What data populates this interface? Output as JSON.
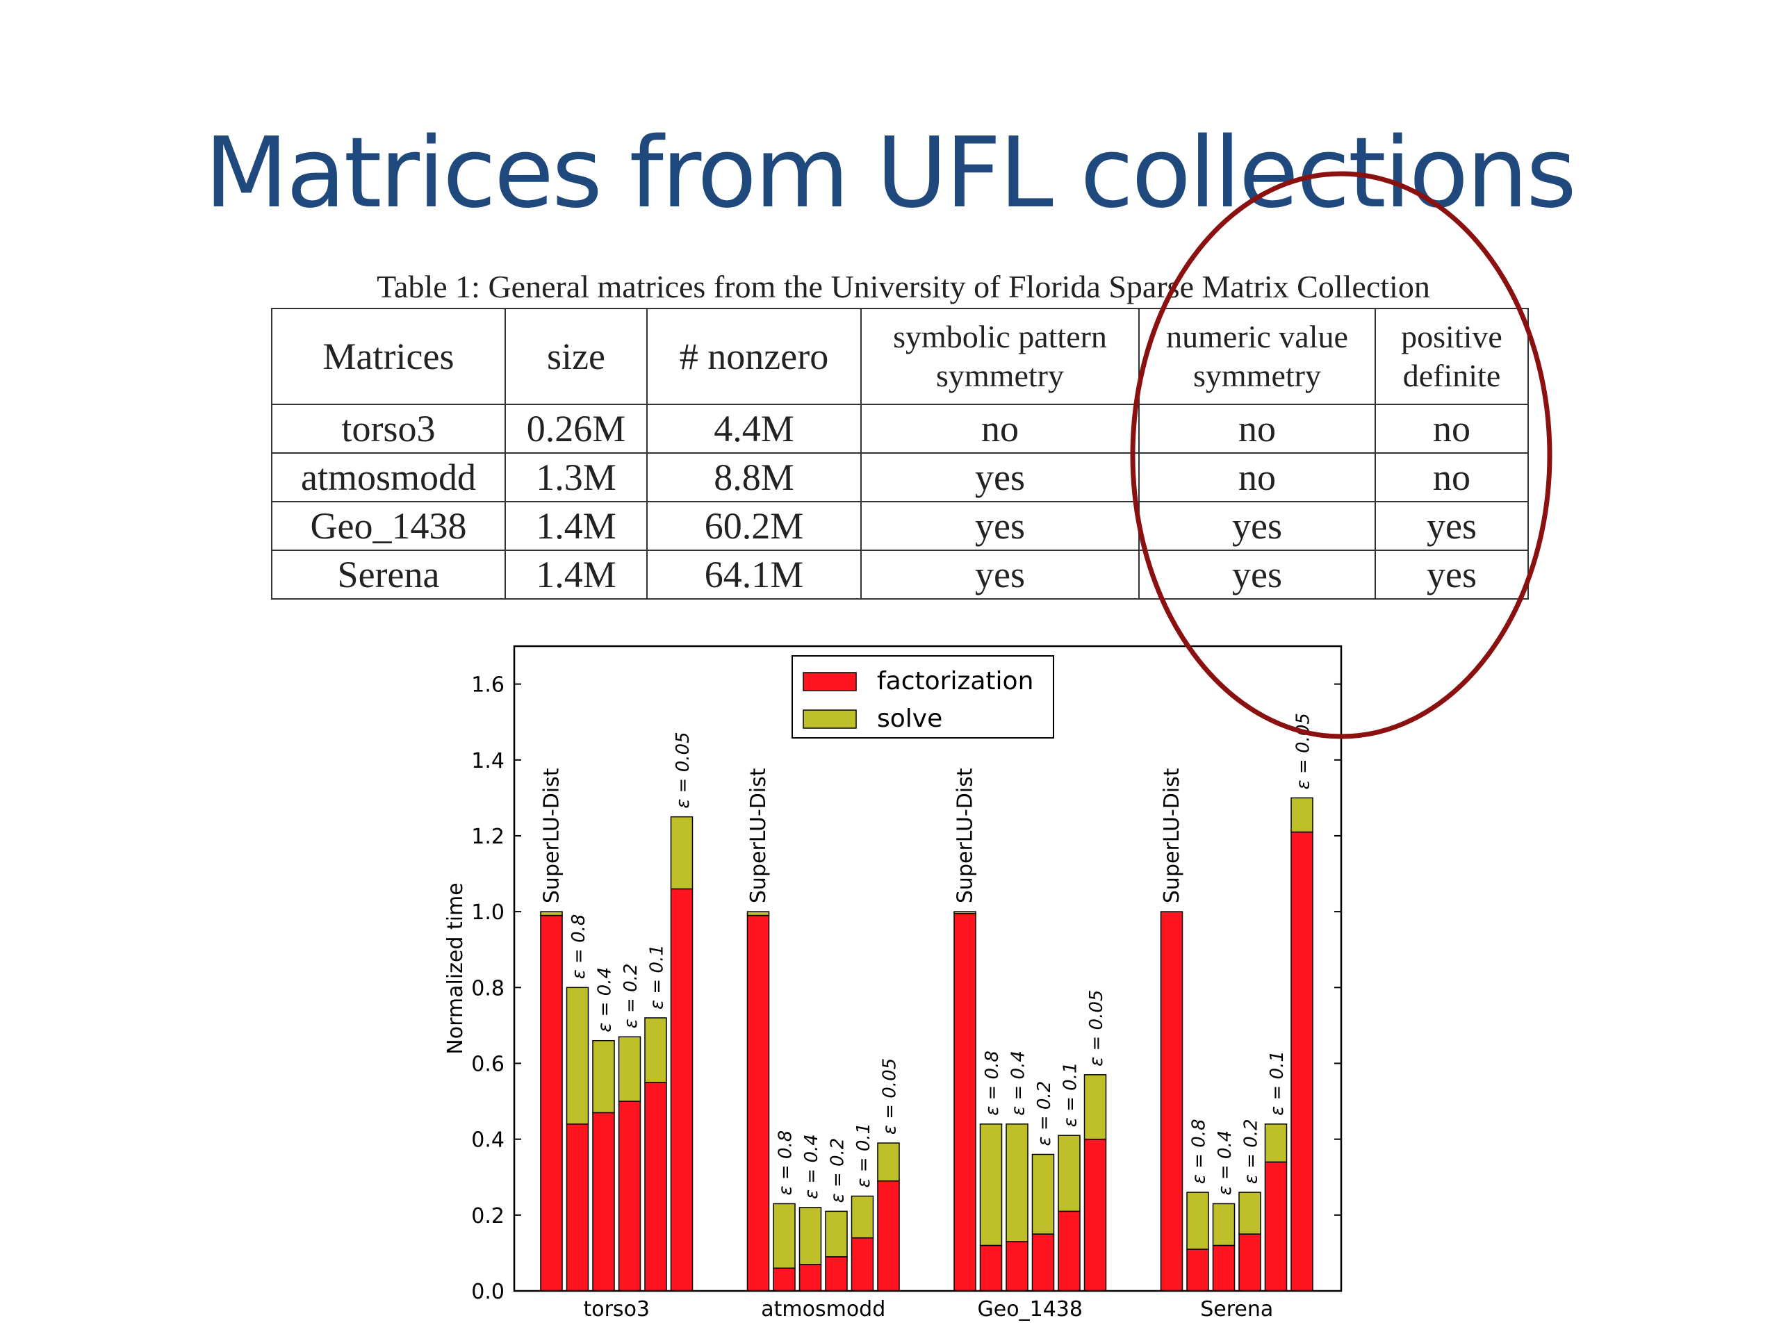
{
  "slide": {
    "title": "Matrices from UFL collections"
  },
  "table": {
    "caption": "Table 1: General matrices from the University of Florida Sparse Matrix Collection",
    "headers": [
      [
        "Matrices"
      ],
      [
        "size"
      ],
      [
        "# nonzero"
      ],
      [
        "symbolic pattern",
        "symmetry"
      ],
      [
        "numeric value",
        "symmetry"
      ],
      [
        "positive",
        "definite"
      ]
    ],
    "rows": [
      [
        "torso3",
        "0.26M",
        "4.4M",
        "no",
        "no",
        "no"
      ],
      [
        "atmosmodd",
        "1.3M",
        "8.8M",
        "yes",
        "no",
        "no"
      ],
      [
        "Geo_1438",
        "1.4M",
        "60.2M",
        "yes",
        "yes",
        "yes"
      ],
      [
        "Serena",
        "1.4M",
        "64.1M",
        "yes",
        "yes",
        "yes"
      ]
    ]
  },
  "annotation": {
    "ellipse_color": "#8b1010"
  },
  "chart_data": {
    "type": "bar",
    "stacked": true,
    "ylabel": "Normalized time",
    "ylim": [
      0,
      1.7
    ],
    "yticks": [
      "0.0",
      "0.2",
      "0.4",
      "0.6",
      "0.8",
      "1.0",
      "1.2",
      "1.4",
      "1.6"
    ],
    "legend": {
      "placement": "top-center",
      "entries": [
        "factorization",
        "solve"
      ]
    },
    "colors": {
      "factorization": "#ff1420",
      "solve": "#bfbf2a"
    },
    "groups": [
      {
        "category": "torso3",
        "bars": [
          {
            "label": "SuperLU-Dist",
            "factorization": 0.99,
            "solve": 0.01
          },
          {
            "label": "ε = 0.8",
            "factorization": 0.44,
            "solve": 0.36
          },
          {
            "label": "ε = 0.4",
            "factorization": 0.47,
            "solve": 0.19
          },
          {
            "label": "ε = 0.2",
            "factorization": 0.5,
            "solve": 0.17
          },
          {
            "label": "ε = 0.1",
            "factorization": 0.55,
            "solve": 0.17
          },
          {
            "label": "ε = 0.05",
            "factorization": 1.06,
            "solve": 0.19
          }
        ]
      },
      {
        "category": "atmosmodd",
        "bars": [
          {
            "label": "SuperLU-Dist",
            "factorization": 0.99,
            "solve": 0.01
          },
          {
            "label": "ε = 0.8",
            "factorization": 0.06,
            "solve": 0.17
          },
          {
            "label": "ε = 0.4",
            "factorization": 0.07,
            "solve": 0.15
          },
          {
            "label": "ε = 0.2",
            "factorization": 0.09,
            "solve": 0.12
          },
          {
            "label": "ε = 0.1",
            "factorization": 0.14,
            "solve": 0.11
          },
          {
            "label": "ε = 0.05",
            "factorization": 0.29,
            "solve": 0.1
          }
        ]
      },
      {
        "category": "Geo_1438",
        "bars": [
          {
            "label": "SuperLU-Dist",
            "factorization": 0.995,
            "solve": 0.005
          },
          {
            "label": "ε = 0.8",
            "factorization": 0.12,
            "solve": 0.32
          },
          {
            "label": "ε = 0.4",
            "factorization": 0.13,
            "solve": 0.31
          },
          {
            "label": "ε = 0.2",
            "factorization": 0.15,
            "solve": 0.21
          },
          {
            "label": "ε = 0.1",
            "factorization": 0.21,
            "solve": 0.2
          },
          {
            "label": "ε = 0.05",
            "factorization": 0.4,
            "solve": 0.17
          }
        ]
      },
      {
        "category": "Serena",
        "bars": [
          {
            "label": "SuperLU-Dist",
            "factorization": 1.0,
            "solve": 0.0
          },
          {
            "label": "ε = 0.8",
            "factorization": 0.11,
            "solve": 0.15
          },
          {
            "label": "ε = 0.4",
            "factorization": 0.12,
            "solve": 0.11
          },
          {
            "label": "ε = 0.2",
            "factorization": 0.15,
            "solve": 0.11
          },
          {
            "label": "ε = 0.1",
            "factorization": 0.34,
            "solve": 0.1
          },
          {
            "label": "ε = 0.05",
            "factorization": 1.21,
            "solve": 0.09
          }
        ]
      }
    ]
  }
}
